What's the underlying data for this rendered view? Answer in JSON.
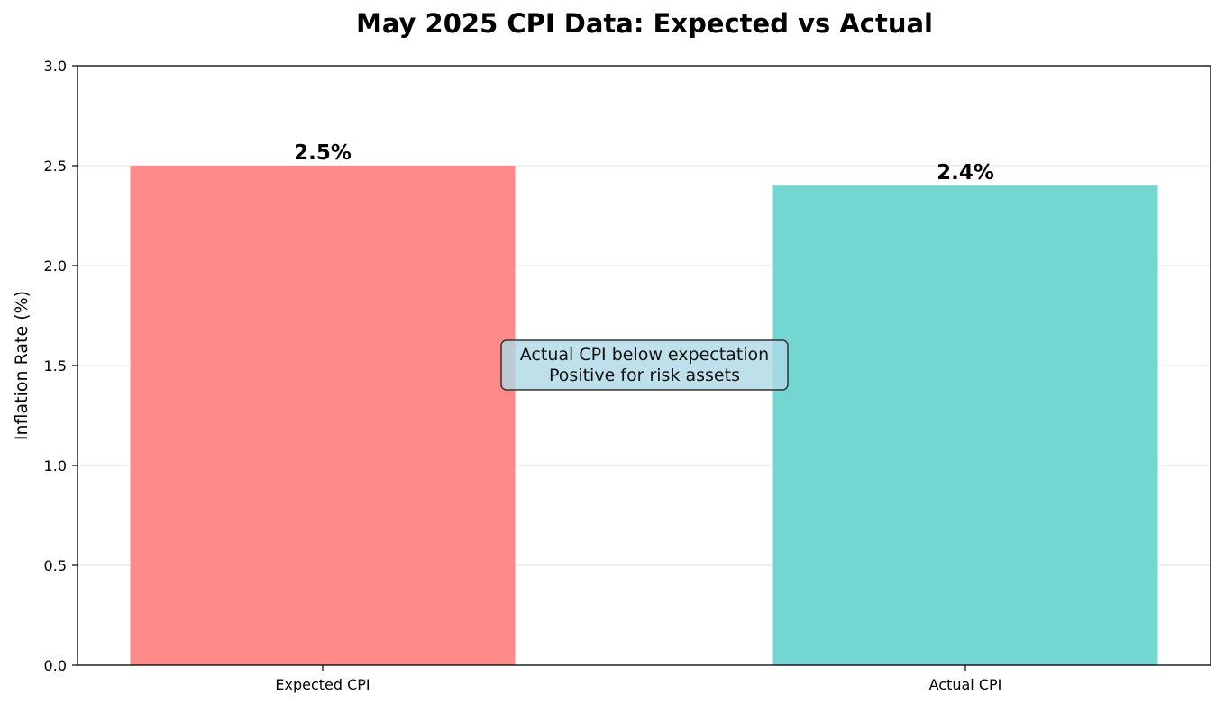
{
  "chart_data": {
    "type": "bar",
    "title": "May 2025 CPI Data: Expected vs Actual",
    "xlabel": "",
    "ylabel": "Inflation Rate (%)",
    "categories": [
      "Expected CPI",
      "Actual CPI"
    ],
    "values": [
      2.5,
      2.4
    ],
    "value_labels": [
      "2.5%",
      "2.4%"
    ],
    "bar_colors": [
      "#ff8a8a",
      "#74d6d1"
    ],
    "ylim": [
      0,
      3.0
    ],
    "yticks": [
      0.0,
      0.5,
      1.0,
      1.5,
      2.0,
      2.5,
      3.0
    ],
    "ytick_labels": [
      "0.0",
      "0.5",
      "1.0",
      "1.5",
      "2.0",
      "2.5",
      "3.0"
    ],
    "grid": true,
    "legend": "none",
    "annotation": {
      "lines": [
        "Actual CPI below expectation",
        "Positive for risk assets"
      ],
      "box_color": "#add8e6"
    }
  }
}
